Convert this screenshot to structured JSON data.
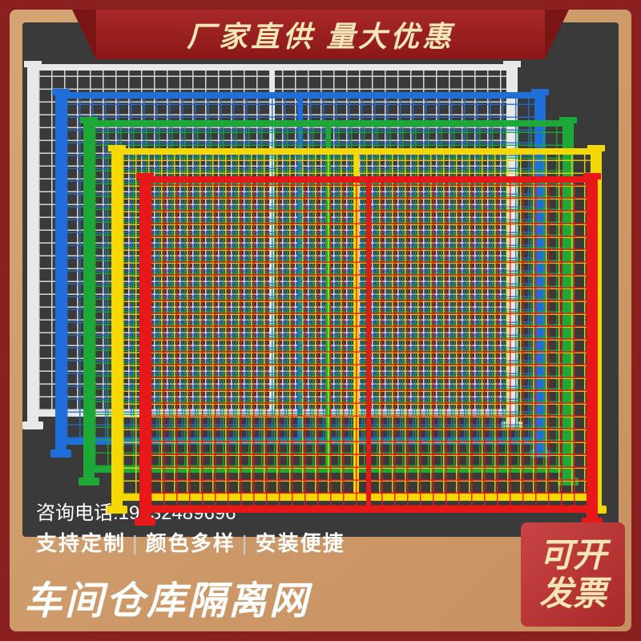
{
  "banner": {
    "text": "厂家直供 量大优惠",
    "bg_start": "#a82828",
    "bg_end": "#8b1818",
    "text_color": "#f5e6b8"
  },
  "fences": [
    {
      "color": "#e8e8e8",
      "z": 1
    },
    {
      "color": "#1e6fd9",
      "z": 2
    },
    {
      "color": "#1ea838",
      "z": 3
    },
    {
      "color": "#f5d800",
      "z": 4
    },
    {
      "color": "#e81818",
      "z": 5
    }
  ],
  "contact": {
    "label": "咨询电话:",
    "phone": "19832489696"
  },
  "features": [
    "支持定制",
    "颜色多样",
    "安装便捷"
  ],
  "title": "车间仓库隔离网",
  "invoice": "可开发票",
  "colors": {
    "page_bg": "#8b2020",
    "frame_start": "#d4a574",
    "frame_end": "#c89060",
    "inner_bg": "#3a3a3a",
    "text_white": "#ffffff",
    "invoice_text": "#f5e6b8"
  }
}
